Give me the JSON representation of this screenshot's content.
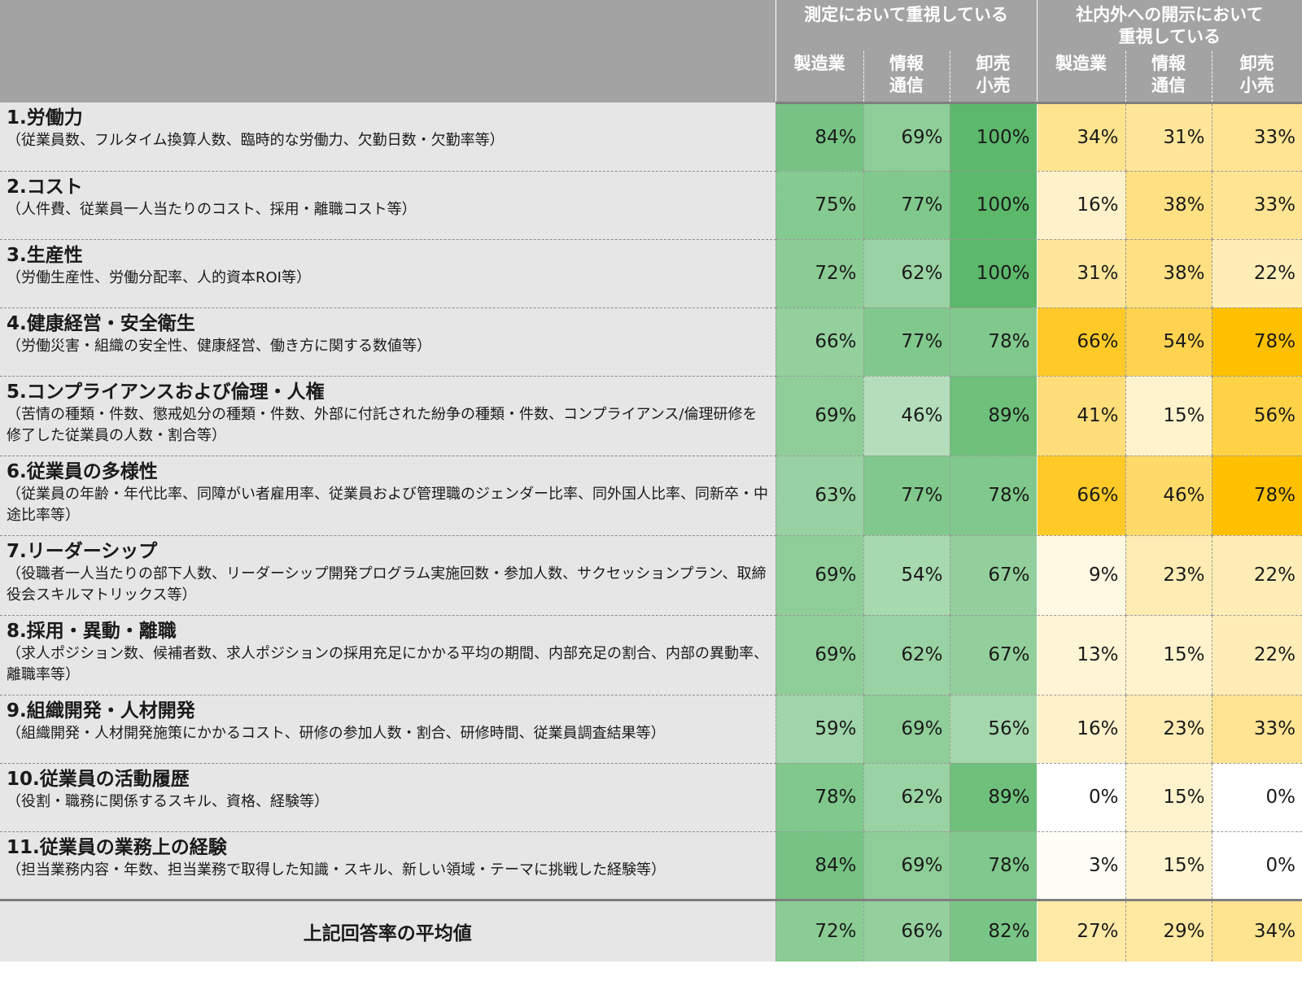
{
  "header": {
    "group_measure": "測定において重視している",
    "group_disclose_line1": "社内外への開示において",
    "group_disclose_line2": "重視している",
    "industries": [
      {
        "line1": "製造業",
        "line2": ""
      },
      {
        "line1": "情報",
        "line2": "通信"
      },
      {
        "line1": "卸売",
        "line2": "小売"
      }
    ]
  },
  "colors": {
    "header_gray": "#a3a3a3",
    "label_gray": "#e6e6e6",
    "measure_scale": [
      "#ffffff",
      "#5cb86b"
    ],
    "disclose_scale": [
      "#ffffff",
      "#ffc000"
    ]
  },
  "chart_data": {
    "type": "heatmap",
    "column_groups": [
      "測定において重視している",
      "社内外への開示において重視している"
    ],
    "columns": [
      "製造業",
      "情報通信",
      "卸売小売",
      "製造業",
      "情報通信",
      "卸売小売"
    ],
    "rows": [
      {
        "title": "1.労働力",
        "desc": "（従業員数、フルタイム換算人数、臨時的な労働力、欠勤日数・欠勤率等）",
        "values": [
          84,
          69,
          100,
          34,
          31,
          33
        ]
      },
      {
        "title": "2.コスト",
        "desc": "（人件費、従業員一人当たりのコスト、採用・離職コスト等）",
        "values": [
          75,
          77,
          100,
          16,
          38,
          33
        ]
      },
      {
        "title": "3.生産性",
        "desc": "（労働生産性、労働分配率、人的資本ROI等）",
        "values": [
          72,
          62,
          100,
          31,
          38,
          22
        ]
      },
      {
        "title": "4.健康経営・安全衛生",
        "desc": "（労働災害・組織の安全性、健康経営、働き方に関する数値等）",
        "values": [
          66,
          77,
          78,
          66,
          54,
          78
        ]
      },
      {
        "title": "5.コンプライアンスおよび倫理・人権",
        "desc": "（苦情の種類・件数、懲戒処分の種類・件数、外部に付託された紛争の種類・件数、コンプライアンス/倫理研修を修了した従業員の人数・割合等）",
        "values": [
          69,
          46,
          89,
          41,
          15,
          56
        ]
      },
      {
        "title": "6.従業員の多様性",
        "desc": "（従業員の年齢・年代比率、同障がい者雇用率、従業員および管理職のジェンダー比率、同外国人比率、同新卒・中途比率等）",
        "values": [
          63,
          77,
          78,
          66,
          46,
          78
        ]
      },
      {
        "title": "7.リーダーシップ",
        "desc": "（役職者一人当たりの部下人数、リーダーシップ開発プログラム実施回数・参加人数、サクセッションプラン、取締役会スキルマトリックス等）",
        "values": [
          69,
          54,
          67,
          9,
          23,
          22
        ]
      },
      {
        "title": "8.採用・異動・離職",
        "desc": "（求人ポジション数、候補者数、求人ポジションの採用充足にかかる平均の期間、内部充足の割合、内部の異動率、離職率等）",
        "values": [
          69,
          62,
          67,
          13,
          15,
          22
        ]
      },
      {
        "title": "9.組織開発・人材開発",
        "desc": "（組織開発・人材開発施策にかかるコスト、研修の参加人数・割合、研修時間、従業員調査結果等）",
        "values": [
          59,
          69,
          56,
          16,
          23,
          33
        ]
      },
      {
        "title": "10.従業員の活動履歴",
        "desc": "（役割・職務に関係するスキル、資格、経験等）",
        "values": [
          78,
          62,
          89,
          0,
          15,
          0
        ]
      },
      {
        "title": "11.従業員の業務上の経験",
        "desc": "（担当業務内容・年数、担当業務で取得した知識・スキル、新しい領域・テーマに挑戦した経験等）",
        "values": [
          84,
          69,
          78,
          3,
          15,
          0
        ]
      }
    ],
    "average": {
      "label": "上記回答率の平均値",
      "values": [
        72,
        66,
        82,
        27,
        29,
        34
      ]
    },
    "value_format": "percent"
  }
}
